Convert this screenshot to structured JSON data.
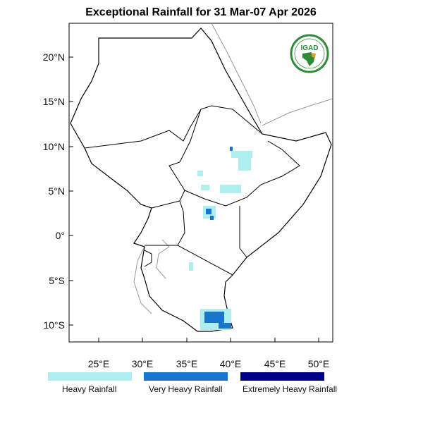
{
  "title": "Exceptional Rainfall for 31 Mar-07 Apr 2026",
  "lat_ticks": [
    "20°N",
    "15°N",
    "10°N",
    "5°N",
    "0°",
    "5°S",
    "10°S"
  ],
  "lon_ticks": [
    "25°E",
    "30°E",
    "35°E",
    "40°E",
    "45°E",
    "50°E"
  ],
  "legend": [
    {
      "label": "Heavy Rainfall",
      "color": "#afeeee"
    },
    {
      "label": "Very Heavy Rainfall",
      "color": "#1874cd"
    },
    {
      "label": "Extremely Heavy Rainfall",
      "color": "#00008b"
    }
  ],
  "logo": {
    "text": "IGAD"
  }
}
